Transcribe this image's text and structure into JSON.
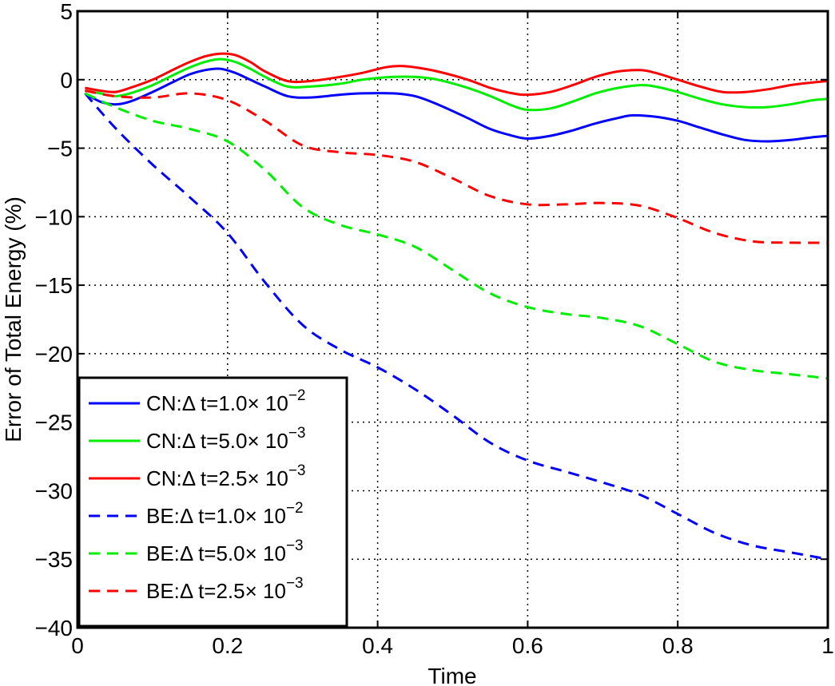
{
  "chart_data": {
    "type": "line",
    "title": "",
    "xlabel": "Time",
    "ylabel": "Error of Total Energy (%)",
    "xlim": [
      0,
      1
    ],
    "ylim": [
      -40,
      5
    ],
    "xticks": [
      0,
      0.2,
      0.4,
      0.6,
      0.8,
      1
    ],
    "xtick_labels": [
      "0",
      "0.2",
      "0.4",
      "0.6",
      "0.8",
      "1"
    ],
    "yticks": [
      5,
      0,
      -5,
      -10,
      -15,
      -20,
      -25,
      -30,
      -35,
      -40
    ],
    "ytick_labels": [
      "5",
      "0",
      "−5",
      "−10",
      "−15",
      "−20",
      "−25",
      "−30",
      "−35",
      "−40"
    ],
    "grid": true,
    "legend_position": "bottom-left",
    "series": [
      {
        "name": "CN:Δ t=1.0× 10",
        "exponent": "−2",
        "color": "#0000ff",
        "style": "solid",
        "x": [
          0.01,
          0.03,
          0.05,
          0.07,
          0.1,
          0.13,
          0.15,
          0.17,
          0.19,
          0.21,
          0.23,
          0.25,
          0.28,
          0.31,
          0.35,
          0.38,
          0.42,
          0.45,
          0.48,
          0.52,
          0.55,
          0.58,
          0.6,
          0.63,
          0.66,
          0.69,
          0.72,
          0.74,
          0.77,
          0.8,
          0.83,
          0.86,
          0.89,
          0.92,
          0.95,
          0.98,
          1.0
        ],
        "y": [
          -1.0,
          -1.6,
          -1.8,
          -1.6,
          -0.9,
          -0.1,
          0.4,
          0.7,
          0.8,
          0.5,
          0.0,
          -0.5,
          -1.2,
          -1.3,
          -1.1,
          -1.0,
          -1.0,
          -1.2,
          -1.8,
          -2.8,
          -3.6,
          -4.1,
          -4.3,
          -4.1,
          -3.7,
          -3.2,
          -2.8,
          -2.6,
          -2.7,
          -3.0,
          -3.5,
          -4.0,
          -4.4,
          -4.5,
          -4.4,
          -4.2,
          -4.1
        ]
      },
      {
        "name": "CN:Δ t=5.0× 10",
        "exponent": "−3",
        "color": "#00ee00",
        "style": "solid",
        "x": [
          0.01,
          0.03,
          0.05,
          0.07,
          0.1,
          0.13,
          0.15,
          0.17,
          0.19,
          0.21,
          0.23,
          0.25,
          0.28,
          0.31,
          0.35,
          0.38,
          0.42,
          0.45,
          0.48,
          0.52,
          0.55,
          0.58,
          0.6,
          0.63,
          0.66,
          0.69,
          0.72,
          0.75,
          0.77,
          0.8,
          0.83,
          0.86,
          0.89,
          0.92,
          0.95,
          0.98,
          1.0
        ],
        "y": [
          -0.8,
          -1.0,
          -1.2,
          -1.0,
          -0.4,
          0.4,
          0.9,
          1.3,
          1.5,
          1.3,
          0.8,
          0.2,
          -0.5,
          -0.5,
          -0.3,
          0.0,
          0.2,
          0.2,
          0.0,
          -0.6,
          -1.2,
          -1.9,
          -2.2,
          -2.1,
          -1.6,
          -1.0,
          -0.6,
          -0.4,
          -0.5,
          -0.9,
          -1.4,
          -1.8,
          -2.0,
          -2.0,
          -1.8,
          -1.5,
          -1.4
        ]
      },
      {
        "name": "CN:Δ t=2.5× 10",
        "exponent": "−3",
        "color": "#ff0000",
        "style": "solid",
        "x": [
          0.01,
          0.03,
          0.05,
          0.07,
          0.1,
          0.13,
          0.15,
          0.17,
          0.19,
          0.21,
          0.23,
          0.25,
          0.28,
          0.31,
          0.35,
          0.38,
          0.41,
          0.43,
          0.45,
          0.48,
          0.52,
          0.55,
          0.58,
          0.6,
          0.63,
          0.66,
          0.69,
          0.72,
          0.75,
          0.77,
          0.8,
          0.83,
          0.86,
          0.89,
          0.92,
          0.95,
          0.98,
          1.0
        ],
        "y": [
          -0.6,
          -0.8,
          -0.9,
          -0.6,
          0.0,
          0.8,
          1.3,
          1.7,
          1.9,
          1.8,
          1.3,
          0.6,
          -0.1,
          -0.1,
          0.2,
          0.5,
          0.9,
          1.0,
          0.9,
          0.6,
          0.0,
          -0.6,
          -1.0,
          -1.1,
          -0.9,
          -0.4,
          0.2,
          0.6,
          0.7,
          0.5,
          0.0,
          -0.5,
          -0.9,
          -0.9,
          -0.7,
          -0.4,
          -0.2,
          -0.1
        ]
      },
      {
        "name": "BE:Δ t=1.0× 10",
        "exponent": "−2",
        "color": "#0000ff",
        "style": "dashed",
        "x": [
          0.01,
          0.05,
          0.1,
          0.15,
          0.2,
          0.25,
          0.3,
          0.35,
          0.4,
          0.45,
          0.5,
          0.55,
          0.6,
          0.65,
          0.7,
          0.75,
          0.8,
          0.85,
          0.9,
          0.95,
          1.0
        ],
        "y": [
          -1.0,
          -3.5,
          -6.2,
          -8.6,
          -11.2,
          -14.8,
          -17.9,
          -19.7,
          -21.0,
          -22.6,
          -24.5,
          -26.5,
          -27.8,
          -28.6,
          -29.4,
          -30.3,
          -31.7,
          -33.1,
          -34.0,
          -34.5,
          -35.0
        ]
      },
      {
        "name": "BE:Δ t=5.0× 10",
        "exponent": "−3",
        "color": "#00ee00",
        "style": "dashed",
        "x": [
          0.01,
          0.05,
          0.1,
          0.15,
          0.2,
          0.25,
          0.3,
          0.35,
          0.4,
          0.45,
          0.5,
          0.55,
          0.6,
          0.65,
          0.7,
          0.75,
          0.8,
          0.85,
          0.9,
          0.95,
          1.0
        ],
        "y": [
          -1.0,
          -2.0,
          -3.0,
          -3.6,
          -4.5,
          -6.6,
          -9.3,
          -10.6,
          -11.3,
          -12.2,
          -13.9,
          -15.6,
          -16.6,
          -17.1,
          -17.4,
          -18.0,
          -19.3,
          -20.6,
          -21.2,
          -21.5,
          -21.8
        ]
      },
      {
        "name": "BE:Δ t=2.5× 10",
        "exponent": "−3",
        "color": "#ff0000",
        "style": "dashed",
        "x": [
          0.01,
          0.05,
          0.1,
          0.15,
          0.2,
          0.25,
          0.3,
          0.35,
          0.4,
          0.45,
          0.5,
          0.55,
          0.6,
          0.65,
          0.7,
          0.75,
          0.8,
          0.85,
          0.9,
          0.95,
          1.0
        ],
        "y": [
          -0.8,
          -1.2,
          -1.3,
          -1.0,
          -1.5,
          -3.0,
          -4.8,
          -5.3,
          -5.5,
          -6.0,
          -7.2,
          -8.5,
          -9.1,
          -9.1,
          -9.0,
          -9.2,
          -10.1,
          -11.2,
          -11.8,
          -11.9,
          -11.9
        ]
      }
    ]
  }
}
